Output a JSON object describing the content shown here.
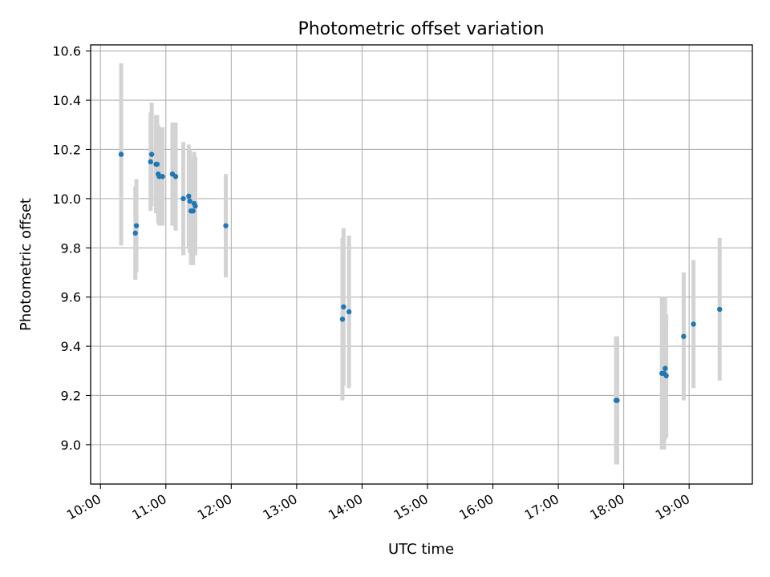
{
  "chart_data": {
    "type": "scatter",
    "title": "Photometric offset variation",
    "xlabel": "UTC time",
    "ylabel": "Photometric offset",
    "x_tick_labels": [
      "10:00",
      "11:00",
      "12:00",
      "13:00",
      "14:00",
      "15:00",
      "16:00",
      "17:00",
      "18:00",
      "19:00"
    ],
    "y_tick_labels": [
      "9.0",
      "9.2",
      "9.4",
      "9.6",
      "9.8",
      "10.0",
      "10.2",
      "10.4",
      "10.6"
    ],
    "xlim": [
      "09:51",
      "19:58"
    ],
    "ylim": [
      8.84,
      10.625
    ],
    "grid": true,
    "point_color": "#1f77b4",
    "errorbar_color": "#d3d3d3",
    "series": [
      {
        "points": [
          {
            "x": "10:19",
            "y": 10.18,
            "err": 0.37
          },
          {
            "x": "10:32",
            "y": 9.86,
            "err": 0.19
          },
          {
            "x": "10:33",
            "y": 9.89,
            "err": 0.19
          },
          {
            "x": "10:46",
            "y": 10.15,
            "err": 0.2
          },
          {
            "x": "10:47",
            "y": 10.18,
            "err": 0.21
          },
          {
            "x": "10:51",
            "y": 10.14,
            "err": 0.2
          },
          {
            "x": "10:52",
            "y": 10.14,
            "err": 0.2
          },
          {
            "x": "10:53",
            "y": 10.1,
            "err": 0.2
          },
          {
            "x": "10:54",
            "y": 10.09,
            "err": 0.2
          },
          {
            "x": "10:57",
            "y": 10.09,
            "err": 0.2
          },
          {
            "x": "11:06",
            "y": 10.1,
            "err": 0.21
          },
          {
            "x": "11:09",
            "y": 10.09,
            "err": 0.22
          },
          {
            "x": "11:16",
            "y": 10.0,
            "err": 0.23
          },
          {
            "x": "11:21",
            "y": 10.01,
            "err": 0.21
          },
          {
            "x": "11:22",
            "y": 9.99,
            "err": 0.21
          },
          {
            "x": "11:23",
            "y": 9.95,
            "err": 0.22
          },
          {
            "x": "11:25",
            "y": 9.95,
            "err": 0.22
          },
          {
            "x": "11:26",
            "y": 9.98,
            "err": 0.21
          },
          {
            "x": "11:27",
            "y": 9.97,
            "err": 0.2
          },
          {
            "x": "11:55",
            "y": 9.89,
            "err": 0.21
          },
          {
            "x": "13:42",
            "y": 9.51,
            "err": 0.33
          },
          {
            "x": "13:43",
            "y": 9.56,
            "err": 0.32
          },
          {
            "x": "13:48",
            "y": 9.54,
            "err": 0.31
          },
          {
            "x": "17:53",
            "y": 9.18,
            "err": 0.26
          },
          {
            "x": "17:54",
            "y": 9.18,
            "err": 0.26
          },
          {
            "x": "18:35",
            "y": 9.29,
            "err": 0.31
          },
          {
            "x": "18:37",
            "y": 9.29,
            "err": 0.31
          },
          {
            "x": "18:38",
            "y": 9.31,
            "err": 0.29
          },
          {
            "x": "18:39",
            "y": 9.28,
            "err": 0.25
          },
          {
            "x": "18:55",
            "y": 9.44,
            "err": 0.26
          },
          {
            "x": "19:04",
            "y": 9.49,
            "err": 0.26
          },
          {
            "x": "19:28",
            "y": 9.55,
            "err": 0.29
          }
        ]
      }
    ]
  }
}
